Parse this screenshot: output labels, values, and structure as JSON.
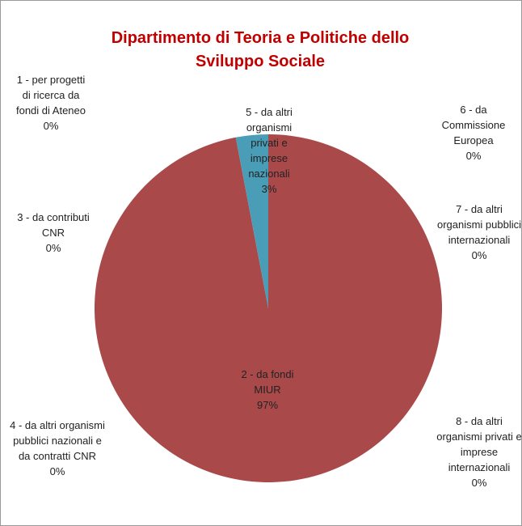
{
  "chart_data": {
    "type": "pie",
    "title": "Dipartimento di Teoria e Politiche dello Sviluppo Sociale",
    "categories": [
      "1 - per progetti di ricerca da fondi di Ateneo",
      "2 - da fondi MIUR",
      "3 - da contributi CNR",
      "4 - da altri organismi pubblici nazionali e da contratti CNR",
      "5 - da altri organismi privati e imprese nazionali",
      "6 - da Commissione Europea",
      "7 - da altri organismi pubblici internazionali",
      "8 - da altri organismi privati e imprese internazionali"
    ],
    "values": [
      0,
      97,
      0,
      0,
      3,
      0,
      0,
      0
    ],
    "value_labels": [
      "0%",
      "97%",
      "0%",
      "0%",
      "3%",
      "0%",
      "0%",
      "0%"
    ],
    "colors": [
      "#4f81bd",
      "#a9494a",
      "#9bbb59",
      "#8064a2",
      "#4a9db6",
      "#f79646",
      "#2c4d75",
      "#772c2a"
    ]
  }
}
